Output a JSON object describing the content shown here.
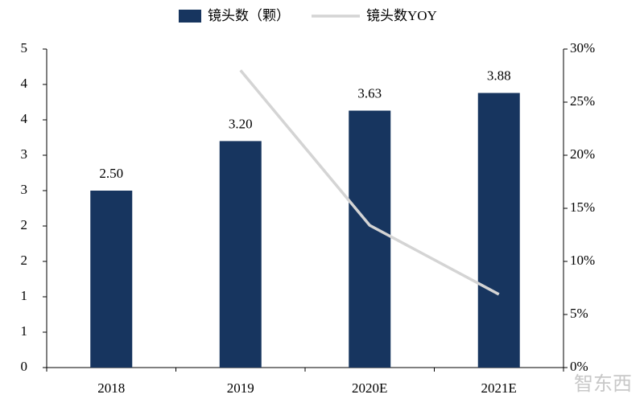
{
  "chart_data": {
    "type": "bar_line",
    "categories": [
      "2018",
      "2019",
      "2020E",
      "2021E"
    ],
    "series": [
      {
        "name": "镜头数（颗）",
        "type": "bar",
        "color": "#17355f",
        "values": [
          2.5,
          3.2,
          3.63,
          3.88
        ],
        "value_labels": [
          "2.50",
          "3.20",
          "3.63",
          "3.88"
        ]
      },
      {
        "name": "镜头数YOY",
        "type": "line",
        "axis": "y2",
        "color": "#d4d4d4",
        "values": [
          null,
          28,
          13.4,
          6.9
        ]
      }
    ],
    "ylim": [
      0,
      4.5
    ],
    "yticks": [
      0,
      {
        "value": 0.5,
        "label": "1"
      },
      1,
      {
        "value": 1.5,
        "label": "2"
      },
      2,
      {
        "value": 2.5,
        "label": "3"
      },
      3,
      {
        "value": 3.5,
        "label": "4"
      },
      4,
      {
        "value": 4.5,
        "label": "5"
      }
    ],
    "y2lim": [
      0,
      30
    ],
    "y2ticks": [
      {
        "value": 0,
        "label": "0%"
      },
      {
        "value": 5,
        "label": "5%"
      },
      {
        "value": 10,
        "label": "10%"
      },
      {
        "value": 15,
        "label": "15%"
      },
      {
        "value": 20,
        "label": "20%"
      },
      {
        "value": 25,
        "label": "25%"
      },
      {
        "value": 30,
        "label": "30%"
      }
    ],
    "watermark": "智东西"
  }
}
